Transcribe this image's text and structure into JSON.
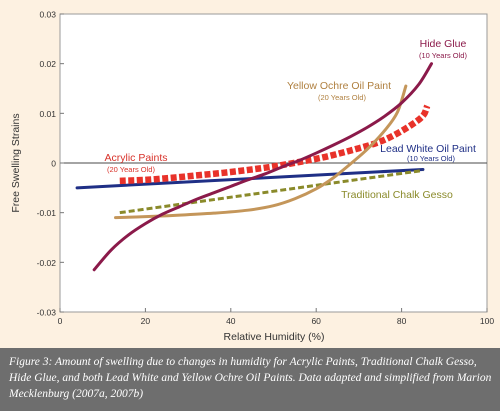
{
  "chart_data": {
    "type": "line",
    "title": "",
    "xlabel": "Relative Humidity (%)",
    "ylabel": "Free Swelling Strains",
    "xlim": [
      0,
      100
    ],
    "ylim": [
      -0.03,
      0.03
    ],
    "x_ticks": [
      "0",
      "20",
      "40",
      "60",
      "80",
      "100"
    ],
    "y_ticks": [
      "-0.03",
      "-0.02",
      "-0.01",
      "0",
      "0.01",
      "0.02",
      "0.03"
    ],
    "grid": false,
    "series": [
      {
        "name": "Hide Glue",
        "sublabel": "(10 Years Old)",
        "color": "#8b1a4a",
        "style": "solid",
        "points": [
          [
            8,
            -0.0215
          ],
          [
            12,
            -0.0175
          ],
          [
            16,
            -0.0145
          ],
          [
            20,
            -0.0122
          ],
          [
            24,
            -0.0103
          ],
          [
            28,
            -0.0088
          ],
          [
            32,
            -0.0073
          ],
          [
            36,
            -0.006
          ],
          [
            40,
            -0.0047
          ],
          [
            44,
            -0.0034
          ],
          [
            48,
            -0.0022
          ],
          [
            52,
            -0.0008
          ],
          [
            56,
            0.0005
          ],
          [
            60,
            0.002
          ],
          [
            64,
            0.0036
          ],
          [
            68,
            0.0053
          ],
          [
            72,
            0.0072
          ],
          [
            76,
            0.0094
          ],
          [
            80,
            0.0121
          ],
          [
            84,
            0.0158
          ],
          [
            87,
            0.02
          ]
        ]
      },
      {
        "name": "Yellow Ochre Oil Paint",
        "sublabel": "(20 Years Old)",
        "color": "#c4965a",
        "style": "solid",
        "points": [
          [
            13,
            -0.011
          ],
          [
            20,
            -0.0108
          ],
          [
            28,
            -0.0105
          ],
          [
            36,
            -0.0101
          ],
          [
            44,
            -0.0095
          ],
          [
            50,
            -0.0086
          ],
          [
            55,
            -0.0072
          ],
          [
            60,
            -0.0052
          ],
          [
            64,
            -0.003
          ],
          [
            68,
            -0.0002
          ],
          [
            72,
            0.0028
          ],
          [
            76,
            0.0065
          ],
          [
            79,
            0.0102
          ],
          [
            81,
            0.0155
          ]
        ]
      },
      {
        "name": "Acrylic Paints",
        "sublabel": "(20 Years Old)",
        "color": "#e8322a",
        "style": "dashed-thick",
        "points": [
          [
            14,
            -0.0036
          ],
          [
            20,
            -0.0034
          ],
          [
            26,
            -0.003
          ],
          [
            32,
            -0.0025
          ],
          [
            38,
            -0.002
          ],
          [
            44,
            -0.0014
          ],
          [
            50,
            -0.0007
          ],
          [
            56,
            0.0002
          ],
          [
            62,
            0.0012
          ],
          [
            68,
            0.0025
          ],
          [
            74,
            0.004
          ],
          [
            78,
            0.0055
          ],
          [
            82,
            0.0075
          ],
          [
            85,
            0.0095
          ],
          [
            86,
            0.0115
          ]
        ]
      },
      {
        "name": "Lead White Oil Paint",
        "sublabel": "(10 Years Old)",
        "color": "#1f2f86",
        "style": "solid",
        "points": [
          [
            4,
            -0.005
          ],
          [
            85,
            -0.0013
          ]
        ]
      },
      {
        "name": "Traditional Chalk Gesso",
        "sublabel": "",
        "color": "#8a8a2a",
        "style": "dashed",
        "points": [
          [
            14,
            -0.01
          ],
          [
            85,
            -0.0015
          ]
        ]
      }
    ],
    "annotations": [
      {
        "text": "Hide Glue",
        "sub": "(10 Years Old)",
        "color": "#8b1a4a"
      },
      {
        "text": "Yellow Ochre Oil Paint",
        "sub": "(20 Years Old)",
        "color": "#b08040"
      },
      {
        "text": "Acrylic Paints",
        "sub": "(20 Years Old)",
        "color": "#d8322a"
      },
      {
        "text": "Lead White Oil Paint",
        "sub": "(10 Years Old)",
        "color": "#1f2f86"
      },
      {
        "text": "Traditional Chalk Gesso",
        "sub": "",
        "color": "#8a8a2a"
      }
    ]
  },
  "caption": {
    "label": "Figure 3:",
    "text": "Amount of swelling due to changes in humidity for Acrylic Paints, Traditional Chalk Gesso, Hide Glue, and both Lead White and Yellow Ochre Oil Paints. Data adapted and simplified from Marion Mecklenburg (2007a, 2007b)"
  }
}
